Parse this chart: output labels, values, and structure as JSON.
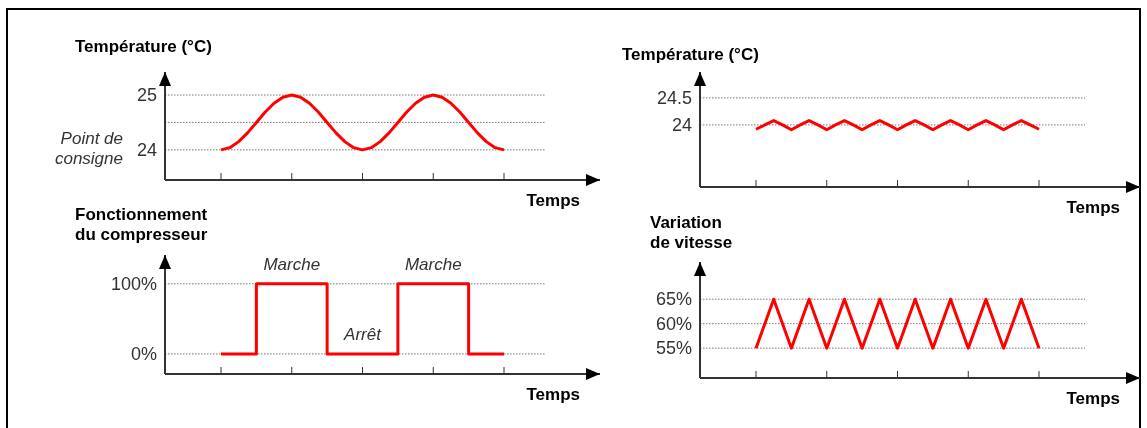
{
  "chart_data": [
    {
      "type": "line",
      "ylabel": "Température (°C)",
      "xlabel": "Temps",
      "annotations": [
        "Point de consigne"
      ],
      "categories": [
        null,
        null,
        null,
        null,
        null,
        null,
        null,
        null,
        null,
        null,
        null,
        null,
        null,
        null,
        null,
        null,
        null,
        null,
        null,
        null,
        null,
        null,
        null,
        null,
        null,
        null,
        null,
        null,
        null,
        null,
        null,
        null,
        null
      ],
      "series": [
        {
          "color": "#ff0000",
          "values": [
            24,
            24.04,
            24.15,
            24.31,
            24.5,
            24.69,
            24.85,
            24.96,
            25,
            24.96,
            24.85,
            24.69,
            24.5,
            24.31,
            24.15,
            24.04,
            24,
            24.04,
            24.15,
            24.31,
            24.5,
            24.69,
            24.85,
            24.96,
            25,
            24.96,
            24.85,
            24.69,
            24.5,
            24.31,
            24.15,
            24.04,
            24
          ]
        }
      ],
      "ylim": [
        23.45,
        25.42
      ],
      "yticks": [
        24,
        {
          "value": 24.5,
          "label": null
        },
        25
      ],
      "grid": "y",
      "tick_labels": "y"
    },
    {
      "type": "step",
      "ylabel": "Fonctionnement\ndu compresseur",
      "xlabel": "Temps",
      "annotations": [
        "Marche",
        "Arrêt",
        "Marche"
      ],
      "categories": [
        null,
        null,
        null,
        null,
        null,
        null,
        null,
        null,
        null
      ],
      "series": [
        {
          "color": "#ff0000",
          "values": [
            0,
            100,
            100,
            0,
            0,
            100,
            100,
            0,
            0
          ]
        }
      ],
      "ylim": [
        -28.6,
        141
      ],
      "yticks": [
        {
          "value": 0,
          "label": "0%"
        },
        {
          "value": 100,
          "label": "100%"
        }
      ],
      "grid": "y",
      "tick_labels": "y"
    },
    {
      "type": "line",
      "ylabel": "Température (°C)",
      "xlabel": "Temps",
      "categories": [
        null,
        null,
        null,
        null,
        null,
        null,
        null,
        null,
        null,
        null,
        null,
        null,
        null,
        null,
        null,
        null,
        null,
        null,
        null,
        null,
        null,
        null,
        null,
        null,
        null,
        null,
        null,
        null,
        null,
        null,
        null,
        null,
        null
      ],
      "series": [
        {
          "color": "#ff0000",
          "values": [
            23.92,
            24,
            24.08,
            24,
            23.91,
            24,
            24.08,
            24,
            23.91,
            24,
            24.08,
            24,
            23.91,
            24,
            24.08,
            24,
            23.91,
            24,
            24.08,
            24,
            23.91,
            24,
            24.08,
            24,
            23.91,
            24,
            24.08,
            24,
            23.91,
            24,
            24.08,
            24,
            23.92
          ]
        }
      ],
      "ylim": [
        22.85,
        24.98
      ],
      "yticks": [
        24,
        24.5
      ],
      "grid": "y",
      "tick_labels": "y"
    },
    {
      "type": "line",
      "ylabel": "Variation\nde vitesse",
      "xlabel": "Temps",
      "categories": [
        null,
        null,
        null,
        null,
        null,
        null,
        null,
        null,
        null,
        null,
        null,
        null,
        null,
        null,
        null,
        null,
        null
      ],
      "series": [
        {
          "color": "#ff0000",
          "values": [
            55,
            65,
            55,
            65,
            55,
            65,
            55,
            65,
            55,
            65,
            55,
            65,
            55,
            65,
            55,
            65,
            55
          ]
        }
      ],
      "ylim": [
        48.9,
        72.6
      ],
      "yticks": [
        {
          "value": 55,
          "label": "55%"
        },
        {
          "value": 60,
          "label": "60%"
        },
        {
          "value": 65,
          "label": "65%"
        }
      ],
      "grid": "y",
      "tick_labels": "y"
    }
  ]
}
